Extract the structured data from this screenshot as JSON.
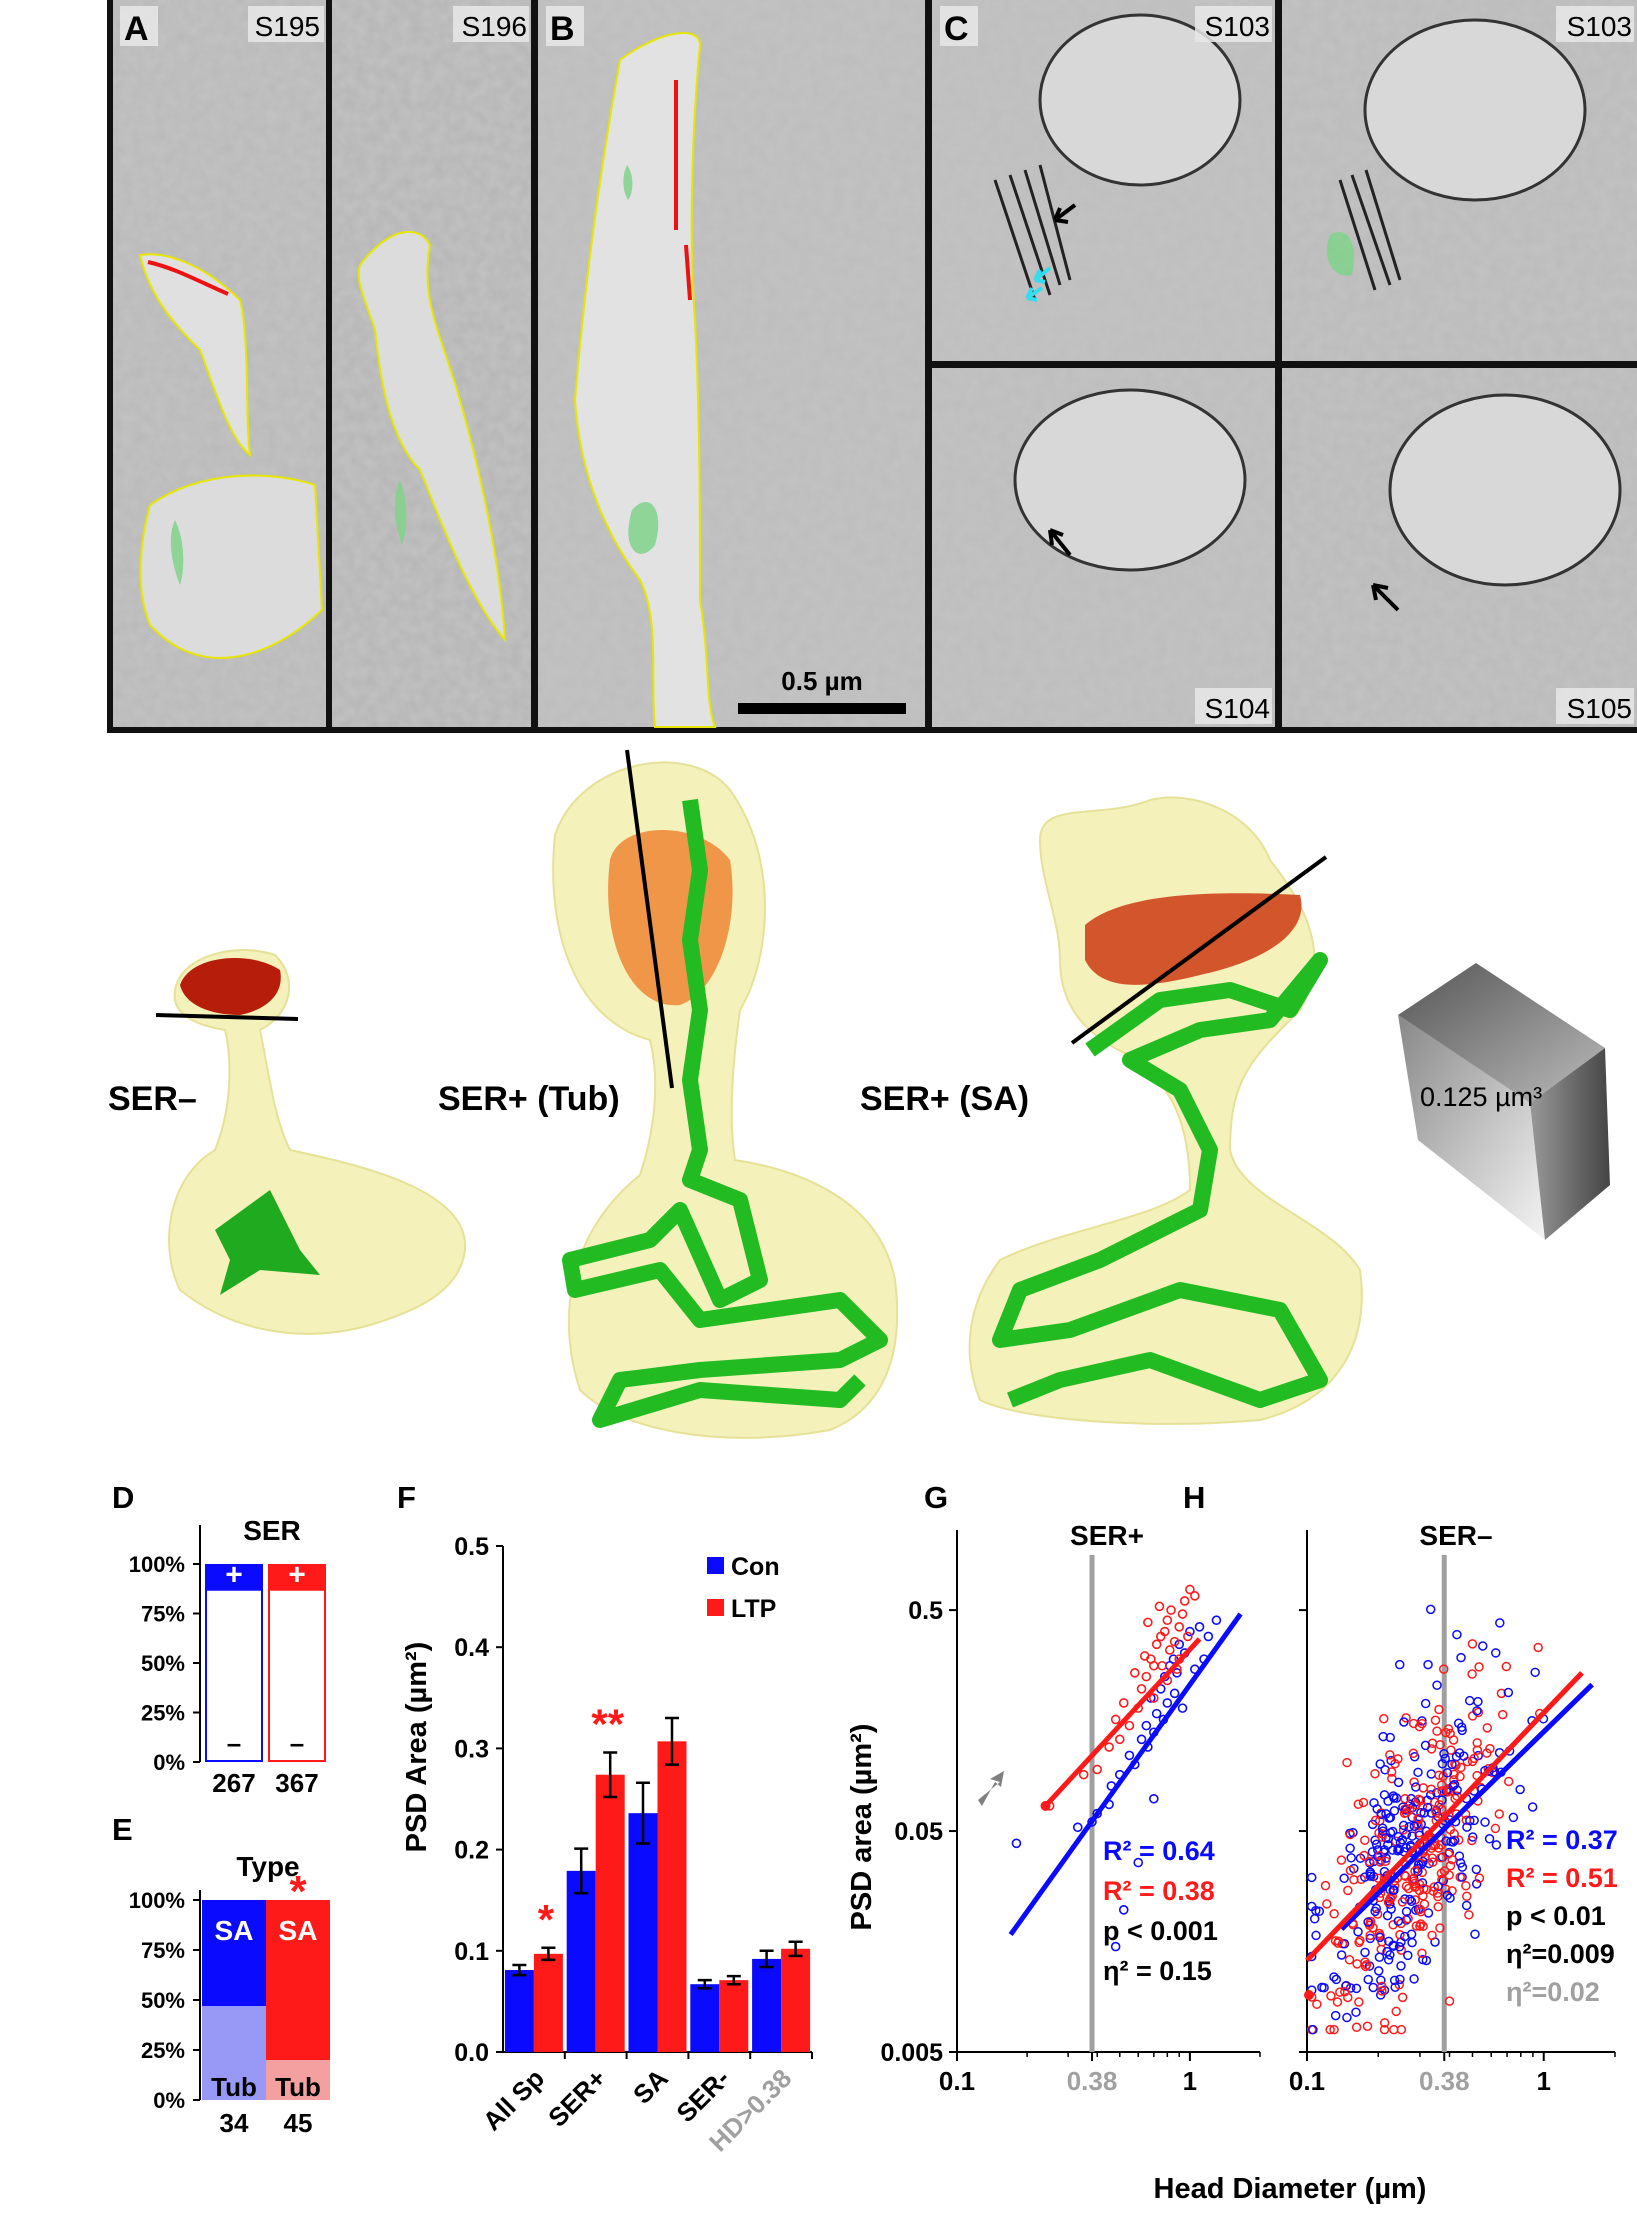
{
  "colors": {
    "con": "#0a0aff",
    "ltp": "#ff1a1a",
    "grey": "#a0a0a0",
    "ser": "#22cc22"
  },
  "em_panels": {
    "A": {
      "label": "A",
      "tags": [
        "S195",
        "S196"
      ]
    },
    "B": {
      "label": "B",
      "scalebar": "0.5 µm"
    },
    "C": {
      "label": "C",
      "tags": [
        "S103",
        "S103",
        "S104",
        "S105"
      ]
    }
  },
  "recon": {
    "labels": [
      "SER–",
      "SER+ (Tub)",
      "SER+ (SA)"
    ],
    "cube_label": "0.125 µm³"
  },
  "chart_data": [
    {
      "panel": "D",
      "type": "bar",
      "title": "SER",
      "stack_labels": [
        "+",
        "–"
      ],
      "counts": [
        "267",
        "367"
      ],
      "series": [
        {
          "name": "Con",
          "ser_plus_pct": 13,
          "ser_minus_pct": 87
        },
        {
          "name": "LTP",
          "ser_plus_pct": 13,
          "ser_minus_pct": 87
        }
      ],
      "yticks": [
        "0%",
        "25%",
        "50%",
        "75%",
        "100%"
      ]
    },
    {
      "panel": "E",
      "type": "bar",
      "title": "Type",
      "sig": "*",
      "stack_labels": [
        "SA",
        "Tub"
      ],
      "counts": [
        "34",
        "45"
      ],
      "series": [
        {
          "name": "Con",
          "sa_pct": 53,
          "tub_pct": 47
        },
        {
          "name": "LTP",
          "sa_pct": 80,
          "tub_pct": 20
        }
      ],
      "yticks": [
        "0%",
        "25%",
        "50%",
        "75%",
        "100%"
      ]
    },
    {
      "panel": "F",
      "type": "bar",
      "ylabel": "PSD Area (µm²)",
      "ylim": [
        0,
        0.5
      ],
      "yticks": [
        "0.0",
        "0.1",
        "0.2",
        "0.3",
        "0.4",
        "0.5"
      ],
      "categories": [
        "All Sp",
        "SER+",
        "SA",
        "SER-",
        "HD>0.38"
      ],
      "series": [
        {
          "name": "Con",
          "values": [
            0.081,
            0.179,
            0.236,
            0.067,
            0.092
          ],
          "errors": [
            0.005,
            0.022,
            0.03,
            0.004,
            0.008
          ]
        },
        {
          "name": "LTP",
          "values": [
            0.097,
            0.274,
            0.307,
            0.071,
            0.102
          ],
          "errors": [
            0.006,
            0.022,
            0.023,
            0.004,
            0.007
          ]
        }
      ],
      "significance": [
        "*",
        "**",
        "",
        "",
        ""
      ]
    },
    {
      "panel": "G",
      "type": "scatter",
      "scale": "log",
      "title": "SER+",
      "ylabel": "PSD area (µm²)",
      "xlim": [
        0.1,
        2
      ],
      "ylim": [
        0.005,
        0.8
      ],
      "xticks": [
        "0.1",
        "0.38",
        "1"
      ],
      "yticks": [
        "0.005",
        "0.05",
        "0.5"
      ],
      "threshold_x": 0.38,
      "stats": [
        "R² = 0.64",
        "R² = 0.38",
        "p < 0.001",
        "η² =  0.15"
      ],
      "series": [
        {
          "name": "Con",
          "fit": [
            [
              0.17,
              0.017
            ],
            [
              1.65,
              0.48
            ]
          ],
          "points": [
            [
              0.18,
              0.044
            ],
            [
              0.33,
              0.052
            ],
            [
              0.38,
              0.055
            ],
            [
              0.45,
              0.066
            ],
            [
              0.46,
              0.08
            ],
            [
              0.5,
              0.09
            ],
            [
              0.55,
              0.11
            ],
            [
              0.58,
              0.1
            ],
            [
              0.62,
              0.13
            ],
            [
              0.65,
              0.15
            ],
            [
              0.68,
              0.2
            ],
            [
              0.7,
              0.14
            ],
            [
              0.72,
              0.17
            ],
            [
              0.75,
              0.22
            ],
            [
              0.78,
              0.25
            ],
            [
              0.8,
              0.19
            ],
            [
              0.82,
              0.28
            ],
            [
              0.85,
              0.3
            ],
            [
              0.88,
              0.26
            ],
            [
              0.9,
              0.35
            ],
            [
              0.95,
              0.32
            ],
            [
              1.0,
              0.4
            ],
            [
              1.05,
              0.27
            ],
            [
              1.1,
              0.42
            ],
            [
              1.2,
              0.38
            ],
            [
              1.3,
              0.45
            ],
            [
              0.6,
              0.036
            ],
            [
              0.52,
              0.022
            ],
            [
              0.48,
              0.015
            ],
            [
              0.7,
              0.07
            ],
            [
              0.77,
              0.16
            ],
            [
              0.86,
              0.21
            ],
            [
              0.93,
              0.18
            ],
            [
              1.15,
              0.3
            ],
            [
              0.66,
              0.12
            ],
            [
              0.4,
              0.06
            ]
          ]
        },
        {
          "name": "LTP",
          "fit": [
            [
              0.24,
              0.065
            ],
            [
              1.1,
              0.37
            ]
          ],
          "points": [
            [
              0.25,
              0.065
            ],
            [
              0.35,
              0.09
            ],
            [
              0.4,
              0.095
            ],
            [
              0.45,
              0.12
            ],
            [
              0.5,
              0.13
            ],
            [
              0.55,
              0.15
            ],
            [
              0.6,
              0.18
            ],
            [
              0.62,
              0.22
            ],
            [
              0.65,
              0.25
            ],
            [
              0.68,
              0.3
            ],
            [
              0.7,
              0.28
            ],
            [
              0.72,
              0.35
            ],
            [
              0.75,
              0.38
            ],
            [
              0.78,
              0.4
            ],
            [
              0.8,
              0.45
            ],
            [
              0.83,
              0.5
            ],
            [
              0.86,
              0.36
            ],
            [
              0.9,
              0.42
            ],
            [
              0.95,
              0.55
            ],
            [
              1.0,
              0.62
            ],
            [
              1.05,
              0.58
            ],
            [
              0.58,
              0.26
            ],
            [
              0.64,
              0.31
            ],
            [
              0.7,
              0.2
            ],
            [
              0.76,
              0.28
            ],
            [
              0.82,
              0.33
            ],
            [
              0.88,
              0.27
            ],
            [
              0.93,
              0.48
            ],
            [
              0.98,
              0.38
            ],
            [
              0.52,
              0.19
            ],
            [
              0.48,
              0.16
            ],
            [
              0.74,
              0.52
            ],
            [
              0.66,
              0.44
            ],
            [
              0.9,
              0.3
            ],
            [
              0.8,
              0.24
            ]
          ]
        }
      ]
    },
    {
      "panel": "H",
      "type": "scatter",
      "scale": "log",
      "title": "SER–",
      "xlim": [
        0.1,
        2
      ],
      "ylim": [
        0.005,
        0.8
      ],
      "xticks": [
        "0.1",
        "0.38",
        "1"
      ],
      "threshold_x": 0.38,
      "stats": [
        "R² = 0.37",
        "R² = 0.51",
        "p  < 0.01",
        "η²=0.009",
        "η²=0.02"
      ],
      "series": [
        {
          "name": "Con",
          "fit": [
            [
              0.14,
              0.018
            ],
            [
              1.6,
              0.23
            ]
          ]
        },
        {
          "name": "LTP",
          "fit": [
            [
              0.1,
              0.013
            ],
            [
              1.45,
              0.26
            ]
          ]
        }
      ]
    }
  ],
  "shared_xlabel": "Head Diameter (µm)"
}
